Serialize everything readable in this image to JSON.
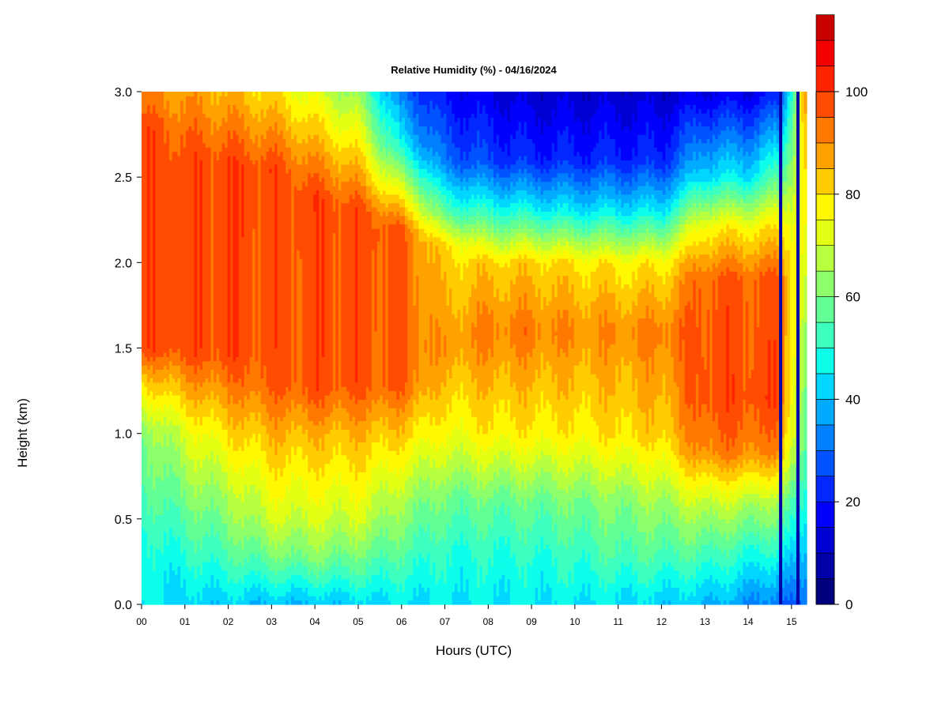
{
  "chart_data": {
    "type": "heatmap",
    "title": "Relative Humidity (%) - 04/16/2024",
    "xlabel": "Hours (UTC)",
    "ylabel": "Height (km)",
    "x_ticks": [
      "00",
      "01",
      "02",
      "03",
      "04",
      "05",
      "06",
      "07",
      "08",
      "09",
      "10",
      "11",
      "12",
      "13",
      "14",
      "15"
    ],
    "y_ticks": [
      "0.0",
      "0.5",
      "1.0",
      "1.5",
      "2.0",
      "2.5",
      "3.0"
    ],
    "xlim": [
      0,
      15.35
    ],
    "ylim": [
      0,
      3.0
    ],
    "colorbar": {
      "ticks": [
        "0",
        "20",
        "40",
        "60",
        "80",
        "100"
      ],
      "range": [
        0,
        100
      ],
      "step": 5,
      "colors": [
        "#00007f",
        "#0000a8",
        "#0000d2",
        "#0000fc",
        "#0028ff",
        "#0054ff",
        "#0080ff",
        "#00aaff",
        "#00d6ff",
        "#0dffea",
        "#3cffc0",
        "#61ff95",
        "#8dff6a",
        "#b7ff3f",
        "#e3ff13",
        "#fff800",
        "#ffcc00",
        "#ffa200",
        "#ff7800",
        "#ff4c00",
        "#ff2400",
        "#f40000",
        "#c80000",
        "#7f0000"
      ]
    },
    "profiles": [
      {
        "hour": 0.0,
        "values": [
          {
            "h": 0.0,
            "rh": 45
          },
          {
            "h": 0.3,
            "rh": 47
          },
          {
            "h": 0.7,
            "rh": 55
          },
          {
            "h": 1.0,
            "rh": 60
          },
          {
            "h": 1.3,
            "rh": 80
          },
          {
            "h": 1.5,
            "rh": 98
          },
          {
            "h": 2.8,
            "rh": 98
          },
          {
            "h": 3.0,
            "rh": 90
          }
        ]
      },
      {
        "hour": 1.0,
        "values": [
          {
            "h": 0.0,
            "rh": 42
          },
          {
            "h": 0.3,
            "rh": 50
          },
          {
            "h": 0.7,
            "rh": 62
          },
          {
            "h": 1.0,
            "rh": 72
          },
          {
            "h": 1.3,
            "rh": 88
          },
          {
            "h": 1.5,
            "rh": 98
          },
          {
            "h": 2.6,
            "rh": 98
          },
          {
            "h": 3.0,
            "rh": 88
          }
        ]
      },
      {
        "hour": 2.0,
        "values": [
          {
            "h": 0.0,
            "rh": 42
          },
          {
            "h": 0.3,
            "rh": 55
          },
          {
            "h": 0.7,
            "rh": 68
          },
          {
            "h": 1.0,
            "rh": 80
          },
          {
            "h": 1.3,
            "rh": 92
          },
          {
            "h": 1.45,
            "rh": 98
          },
          {
            "h": 2.6,
            "rh": 98
          },
          {
            "h": 3.0,
            "rh": 85
          }
        ]
      },
      {
        "hour": 3.0,
        "values": [
          {
            "h": 0.0,
            "rh": 40
          },
          {
            "h": 0.3,
            "rh": 60
          },
          {
            "h": 0.5,
            "rh": 70
          },
          {
            "h": 1.0,
            "rh": 85
          },
          {
            "h": 1.3,
            "rh": 96
          },
          {
            "h": 2.55,
            "rh": 98
          },
          {
            "h": 3.0,
            "rh": 80
          }
        ]
      },
      {
        "hour": 4.0,
        "values": [
          {
            "h": 0.0,
            "rh": 40
          },
          {
            "h": 0.3,
            "rh": 62
          },
          {
            "h": 0.5,
            "rh": 70
          },
          {
            "h": 1.0,
            "rh": 85
          },
          {
            "h": 1.25,
            "rh": 97
          },
          {
            "h": 2.4,
            "rh": 98
          },
          {
            "h": 3.0,
            "rh": 72
          }
        ]
      },
      {
        "hour": 5.0,
        "values": [
          {
            "h": 0.0,
            "rh": 42
          },
          {
            "h": 0.3,
            "rh": 60
          },
          {
            "h": 0.5,
            "rh": 70
          },
          {
            "h": 1.0,
            "rh": 85
          },
          {
            "h": 1.3,
            "rh": 97
          },
          {
            "h": 2.3,
            "rh": 98
          },
          {
            "h": 3.0,
            "rh": 62
          }
        ]
      },
      {
        "hour": 6.0,
        "values": [
          {
            "h": 0.0,
            "rh": 44
          },
          {
            "h": 0.3,
            "rh": 55
          },
          {
            "h": 0.6,
            "rh": 65
          },
          {
            "h": 1.0,
            "rh": 82
          },
          {
            "h": 1.3,
            "rh": 96
          },
          {
            "h": 2.2,
            "rh": 96
          },
          {
            "h": 2.7,
            "rh": 45
          },
          {
            "h": 3.0,
            "rh": 30
          }
        ]
      },
      {
        "hour": 7.0,
        "values": [
          {
            "h": 0.0,
            "rh": 45
          },
          {
            "h": 0.3,
            "rh": 50
          },
          {
            "h": 0.6,
            "rh": 58
          },
          {
            "h": 1.0,
            "rh": 75
          },
          {
            "h": 1.5,
            "rh": 88
          },
          {
            "h": 2.1,
            "rh": 80
          },
          {
            "h": 2.3,
            "rh": 55
          },
          {
            "h": 2.6,
            "rh": 30
          },
          {
            "h": 3.0,
            "rh": 18
          }
        ]
      },
      {
        "hour": 8.0,
        "values": [
          {
            "h": 0.0,
            "rh": 45
          },
          {
            "h": 0.3,
            "rh": 50
          },
          {
            "h": 0.6,
            "rh": 58
          },
          {
            "h": 1.0,
            "rh": 78
          },
          {
            "h": 1.6,
            "rh": 92
          },
          {
            "h": 2.0,
            "rh": 82
          },
          {
            "h": 2.3,
            "rh": 50
          },
          {
            "h": 2.6,
            "rh": 25
          },
          {
            "h": 3.0,
            "rh": 15
          }
        ]
      },
      {
        "hour": 9.0,
        "values": [
          {
            "h": 0.0,
            "rh": 45
          },
          {
            "h": 0.3,
            "rh": 50
          },
          {
            "h": 0.6,
            "rh": 58
          },
          {
            "h": 1.0,
            "rh": 78
          },
          {
            "h": 1.6,
            "rh": 92
          },
          {
            "h": 2.0,
            "rh": 82
          },
          {
            "h": 2.3,
            "rh": 48
          },
          {
            "h": 2.6,
            "rh": 22
          },
          {
            "h": 3.0,
            "rh": 12
          }
        ]
      },
      {
        "hour": 10.0,
        "values": [
          {
            "h": 0.0,
            "rh": 45
          },
          {
            "h": 0.3,
            "rh": 52
          },
          {
            "h": 0.6,
            "rh": 60
          },
          {
            "h": 1.0,
            "rh": 78
          },
          {
            "h": 1.6,
            "rh": 90
          },
          {
            "h": 2.0,
            "rh": 80
          },
          {
            "h": 2.3,
            "rh": 45
          },
          {
            "h": 2.6,
            "rh": 22
          },
          {
            "h": 3.0,
            "rh": 12
          }
        ]
      },
      {
        "hour": 11.0,
        "values": [
          {
            "h": 0.0,
            "rh": 44
          },
          {
            "h": 0.3,
            "rh": 55
          },
          {
            "h": 0.6,
            "rh": 62
          },
          {
            "h": 1.0,
            "rh": 80
          },
          {
            "h": 1.6,
            "rh": 90
          },
          {
            "h": 2.0,
            "rh": 78
          },
          {
            "h": 2.3,
            "rh": 45
          },
          {
            "h": 2.6,
            "rh": 22
          },
          {
            "h": 3.0,
            "rh": 12
          }
        ]
      },
      {
        "hour": 12.0,
        "values": [
          {
            "h": 0.0,
            "rh": 42
          },
          {
            "h": 0.3,
            "rh": 55
          },
          {
            "h": 0.6,
            "rh": 65
          },
          {
            "h": 1.0,
            "rh": 82
          },
          {
            "h": 1.6,
            "rh": 92
          },
          {
            "h": 2.0,
            "rh": 78
          },
          {
            "h": 2.3,
            "rh": 45
          },
          {
            "h": 2.6,
            "rh": 22
          },
          {
            "h": 3.0,
            "rh": 12
          }
        ]
      },
      {
        "hour": 13.0,
        "values": [
          {
            "h": 0.0,
            "rh": 40
          },
          {
            "h": 0.3,
            "rh": 55
          },
          {
            "h": 0.6,
            "rh": 70
          },
          {
            "h": 0.9,
            "rh": 92
          },
          {
            "h": 1.2,
            "rh": 98
          },
          {
            "h": 1.9,
            "rh": 96
          },
          {
            "h": 2.2,
            "rh": 78
          },
          {
            "h": 2.5,
            "rh": 45
          },
          {
            "h": 3.0,
            "rh": 15
          }
        ]
      },
      {
        "hour": 14.0,
        "values": [
          {
            "h": 0.0,
            "rh": 35
          },
          {
            "h": 0.3,
            "rh": 50
          },
          {
            "h": 0.6,
            "rh": 68
          },
          {
            "h": 0.9,
            "rh": 92
          },
          {
            "h": 1.2,
            "rh": 98
          },
          {
            "h": 1.9,
            "rh": 96
          },
          {
            "h": 2.2,
            "rh": 78
          },
          {
            "h": 2.5,
            "rh": 45
          },
          {
            "h": 3.0,
            "rh": 15
          }
        ]
      },
      {
        "hour": 14.7,
        "values": [
          {
            "h": 0.0,
            "rh": 30
          },
          {
            "h": 0.3,
            "rh": 48
          },
          {
            "h": 0.6,
            "rh": 65
          },
          {
            "h": 0.9,
            "rh": 90
          },
          {
            "h": 1.2,
            "rh": 98
          },
          {
            "h": 1.9,
            "rh": 96
          },
          {
            "h": 2.2,
            "rh": 80
          },
          {
            "h": 2.5,
            "rh": 55
          },
          {
            "h": 3.0,
            "rh": 20
          }
        ]
      },
      {
        "hour": 15.35,
        "values": [
          {
            "h": 0.0,
            "rh": 30
          },
          {
            "h": 0.5,
            "rh": 45
          },
          {
            "h": 1.0,
            "rh": 55
          },
          {
            "h": 1.5,
            "rh": 60
          },
          {
            "h": 2.0,
            "rh": 70
          },
          {
            "h": 2.5,
            "rh": 80
          },
          {
            "h": 3.0,
            "rh": 90
          }
        ]
      }
    ],
    "dark_stripes": [
      {
        "hour": 14.75,
        "rh": 8
      },
      {
        "hour": 15.15,
        "rh": 5
      }
    ]
  }
}
